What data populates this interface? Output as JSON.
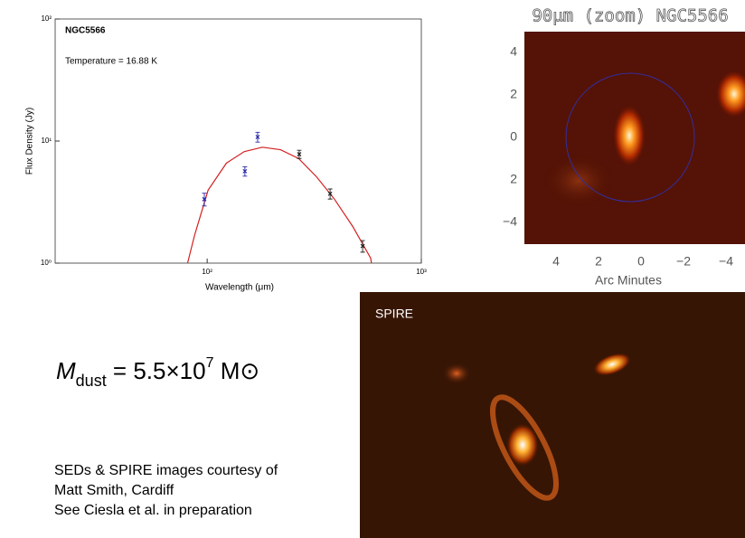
{
  "chart_data": {
    "type": "scatter",
    "title": "NGC5566",
    "annotation": "Temperature = 16.88 K",
    "xlabel": "Wavelength (μm)",
    "ylabel": "Flux Density (Jy)",
    "xscale": "log",
    "yscale": "log",
    "xlim": [
      19.5,
      1000
    ],
    "ylim": [
      1,
      100
    ],
    "xticks": [
      {
        "value": 100,
        "label": "10²"
      },
      {
        "value": 1000,
        "label": "10³"
      }
    ],
    "yticks": [
      {
        "value": 1,
        "label": "10⁰"
      },
      {
        "value": 10,
        "label": "10¹"
      },
      {
        "value": 100,
        "label": "10²"
      }
    ],
    "series": [
      {
        "color": "#2a2aa8",
        "x": [
          97,
          150,
          172
        ],
        "values": [
          3.34,
          5.66,
          10.8
        ],
        "errors": [
          0.4,
          0.5,
          1.0
        ]
      },
      {
        "color": "#222222",
        "x": [
          269,
          375,
          532
        ],
        "values": [
          7.8,
          3.7,
          1.38
        ],
        "errors": [
          0.6,
          0.35,
          0.15
        ]
      }
    ],
    "fit": {
      "color": "#d42020",
      "x": [
        81,
        87.3,
        101,
        123,
        149,
        181,
        220,
        267,
        324,
        393,
        478,
        580,
        585
      ],
      "values": [
        1.0,
        1.69,
        3.96,
        6.6,
        8.2,
        8.9,
        8.5,
        7.2,
        5.1,
        3.34,
        2.0,
        1.1,
        1.0
      ]
    }
  },
  "zoom_panel": {
    "title": "90μm (zoom) NGC5566",
    "y_labels": [
      "4",
      "2",
      "0",
      "2",
      "−4"
    ],
    "x_labels": [
      "4",
      "2",
      "0",
      "−2",
      "−4"
    ],
    "xlabel": "Arc Minutes"
  },
  "spire_panel": {
    "label": "SPIRE"
  },
  "formula": {
    "symbol": "M",
    "subscript": "dust",
    "middle": " = 5.5×10",
    "exponent": "7",
    "unit": " M⊙"
  },
  "credits": [
    "SEDs & SPIRE images courtesy of",
    "Matt Smith, Cardiff",
    "See Ciesla et al. in preparation"
  ]
}
